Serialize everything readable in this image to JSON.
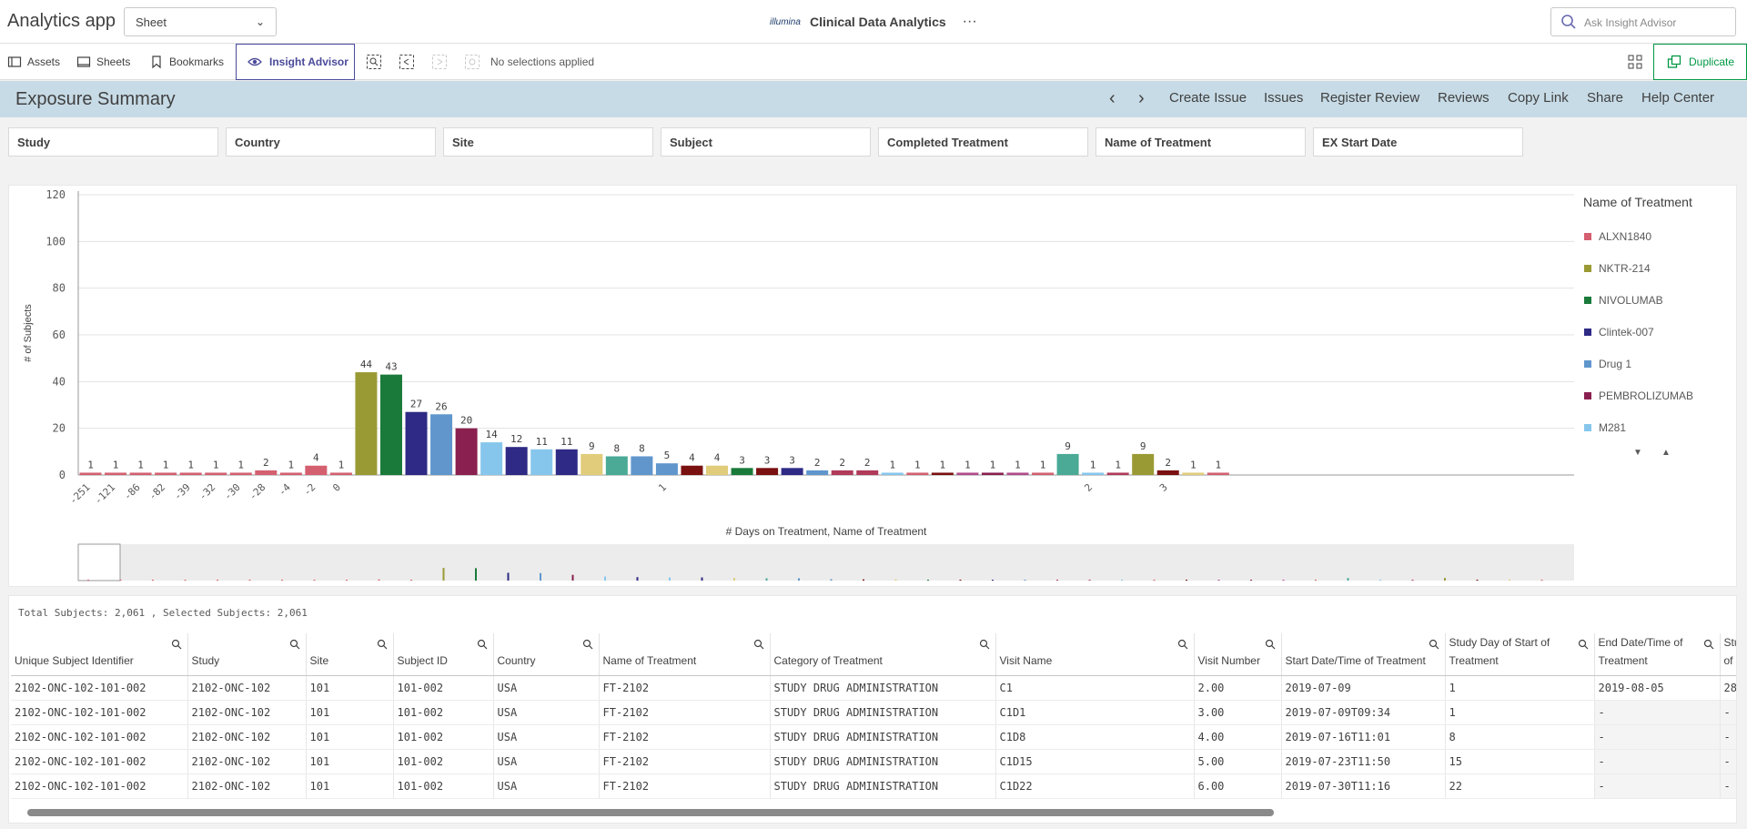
{
  "topbar": {
    "app_title": "Analytics app",
    "sheet_select": "Sheet",
    "logo_text": "illumina",
    "app_name": "Clinical Data Analytics",
    "more": "···",
    "ask_placeholder": "Ask Insight Advisor"
  },
  "toolbar": {
    "assets": "Assets",
    "sheets": "Sheets",
    "bookmarks": "Bookmarks",
    "insight_advisor": "Insight Advisor",
    "no_selections": "No selections applied",
    "duplicate": "Duplicate"
  },
  "sheet": {
    "title": "Exposure Summary",
    "links": [
      "Create Issue",
      "Issues",
      "Register Review",
      "Reviews",
      "Copy Link",
      "Share",
      "Help Center"
    ]
  },
  "filters": [
    "Study",
    "Country",
    "Site",
    "Subject",
    "Completed Treatment",
    "Name of Treatment",
    "EX Start Date"
  ],
  "chart_data": {
    "type": "bar",
    "xlabel": "# Days on Treatment, Name of Treatment",
    "ylabel": "# of Subjects",
    "ylim": [
      0,
      120
    ],
    "yticks": [
      0,
      20,
      40,
      60,
      80,
      100,
      120
    ],
    "grid": true,
    "legend_title": "Name of Treatment",
    "legend_position": "right",
    "legend": [
      {
        "name": "ALXN1840",
        "color": "#d45f6f"
      },
      {
        "name": "NKTR-214",
        "color": "#9a9a35"
      },
      {
        "name": "NIVOLUMAB",
        "color": "#1a7a3a"
      },
      {
        "name": "Clintek-007",
        "color": "#2e2a85"
      },
      {
        "name": "Drug 1",
        "color": "#6096cc"
      },
      {
        "name": "PEMBROLIZUMAB",
        "color": "#8a2050"
      },
      {
        "name": "M281",
        "color": "#87c6ec"
      }
    ],
    "groups": [
      "-251",
      "-121",
      "-86",
      "-82",
      "-39",
      "-32",
      "-30",
      "-28",
      "-4",
      "-2",
      "0",
      "1",
      "2",
      "3"
    ],
    "bars": [
      {
        "group": "-251",
        "value": 1,
        "color": "#d45f6f"
      },
      {
        "group": "-121",
        "value": 1,
        "color": "#d45f6f"
      },
      {
        "group": "-86",
        "value": 1,
        "color": "#d45f6f"
      },
      {
        "group": "-82",
        "value": 1,
        "color": "#d45f6f"
      },
      {
        "group": "-39",
        "value": 1,
        "color": "#d45f6f"
      },
      {
        "group": "-32",
        "value": 1,
        "color": "#d45f6f"
      },
      {
        "group": "-30",
        "value": 1,
        "color": "#d45f6f"
      },
      {
        "group": "-28",
        "value": 2,
        "color": "#d45f6f"
      },
      {
        "group": "-4",
        "value": 1,
        "color": "#d45f6f"
      },
      {
        "group": "-2",
        "value": 4,
        "color": "#d45f6f"
      },
      {
        "group": "0",
        "value": 1,
        "color": "#d45f6f"
      },
      {
        "group": "1",
        "value": 44,
        "color": "#9a9a35"
      },
      {
        "group": "1",
        "value": 43,
        "color": "#1a7a3a"
      },
      {
        "group": "1",
        "value": 27,
        "color": "#2e2a85"
      },
      {
        "group": "1",
        "value": 26,
        "color": "#6096cc"
      },
      {
        "group": "1",
        "value": 20,
        "color": "#8a2050"
      },
      {
        "group": "1",
        "value": 14,
        "color": "#87c6ec"
      },
      {
        "group": "1",
        "value": 12,
        "color": "#2e2a85"
      },
      {
        "group": "1",
        "value": 11,
        "color": "#87c6ec"
      },
      {
        "group": "1",
        "value": 11,
        "color": "#2e2a85"
      },
      {
        "group": "1",
        "value": 9,
        "color": "#e0cc7a"
      },
      {
        "group": "1",
        "value": 8,
        "color": "#4aaa96"
      },
      {
        "group": "1",
        "value": 8,
        "color": "#6096cc"
      },
      {
        "group": "1",
        "value": 5,
        "color": "#6096cc"
      },
      {
        "group": "1",
        "value": 4,
        "color": "#7a1010"
      },
      {
        "group": "1",
        "value": 4,
        "color": "#e0cc7a"
      },
      {
        "group": "1",
        "value": 3,
        "color": "#1a7a3a"
      },
      {
        "group": "1",
        "value": 3,
        "color": "#7a1010"
      },
      {
        "group": "1",
        "value": 3,
        "color": "#2e2a85"
      },
      {
        "group": "1",
        "value": 2,
        "color": "#6096cc"
      },
      {
        "group": "1",
        "value": 2,
        "color": "#b03a5a"
      },
      {
        "group": "1",
        "value": 2,
        "color": "#b03a5a"
      },
      {
        "group": "1",
        "value": 1,
        "color": "#87c6ec"
      },
      {
        "group": "1",
        "value": 1,
        "color": "#d45f6f"
      },
      {
        "group": "1",
        "value": 1,
        "color": "#7a1010"
      },
      {
        "group": "1",
        "value": 1,
        "color": "#b04a8a"
      },
      {
        "group": "1",
        "value": 1,
        "color": "#8a2050"
      },
      {
        "group": "1",
        "value": 1,
        "color": "#b04a8a"
      },
      {
        "group": "1",
        "value": 1,
        "color": "#d45f6f"
      },
      {
        "group": "2",
        "value": 9,
        "color": "#4aaa96"
      },
      {
        "group": "2",
        "value": 1,
        "color": "#87c6ec"
      },
      {
        "group": "2",
        "value": 1,
        "color": "#b03a5a"
      },
      {
        "group": "3",
        "value": 9,
        "color": "#9a9a35"
      },
      {
        "group": "3",
        "value": 2,
        "color": "#7a1010"
      },
      {
        "group": "3",
        "value": 1,
        "color": "#e0cc7a"
      },
      {
        "group": "3",
        "value": 1,
        "color": "#d45f6f"
      }
    ]
  },
  "table": {
    "total_text": "Total Subjects: 2,061 , Selected Subjects: 2,061",
    "columns": [
      "Unique Subject Identifier",
      "Study",
      "Site",
      "Subject ID",
      "Country",
      "Name of Treatment",
      "Category of Treatment",
      "Visit Name",
      "Visit Number",
      "Start Date/Time of Treatment",
      "Study Day of Start of Treatment",
      "End Date/Time of Treatment",
      "Stu of"
    ],
    "rows": [
      [
        "2102-ONC-102-101-002",
        "2102-ONC-102",
        "101",
        "101-002",
        "USA",
        "FT-2102",
        "STUDY DRUG ADMINISTRATION",
        "C1",
        "2.00",
        "2019-07-09",
        "1",
        "2019-08-05",
        "28"
      ],
      [
        "2102-ONC-102-101-002",
        "2102-ONC-102",
        "101",
        "101-002",
        "USA",
        "FT-2102",
        "STUDY DRUG ADMINISTRATION",
        "C1D1",
        "3.00",
        "2019-07-09T09:34",
        "1",
        "-",
        "-"
      ],
      [
        "2102-ONC-102-101-002",
        "2102-ONC-102",
        "101",
        "101-002",
        "USA",
        "FT-2102",
        "STUDY DRUG ADMINISTRATION",
        "C1D8",
        "4.00",
        "2019-07-16T11:01",
        "8",
        "-",
        "-"
      ],
      [
        "2102-ONC-102-101-002",
        "2102-ONC-102",
        "101",
        "101-002",
        "USA",
        "FT-2102",
        "STUDY DRUG ADMINISTRATION",
        "C1D15",
        "5.00",
        "2019-07-23T11:50",
        "15",
        "-",
        "-"
      ],
      [
        "2102-ONC-102-101-002",
        "2102-ONC-102",
        "101",
        "101-002",
        "USA",
        "FT-2102",
        "STUDY DRUG ADMINISTRATION",
        "C1D22",
        "6.00",
        "2019-07-30T11:16",
        "22",
        "-",
        "-"
      ]
    ]
  }
}
